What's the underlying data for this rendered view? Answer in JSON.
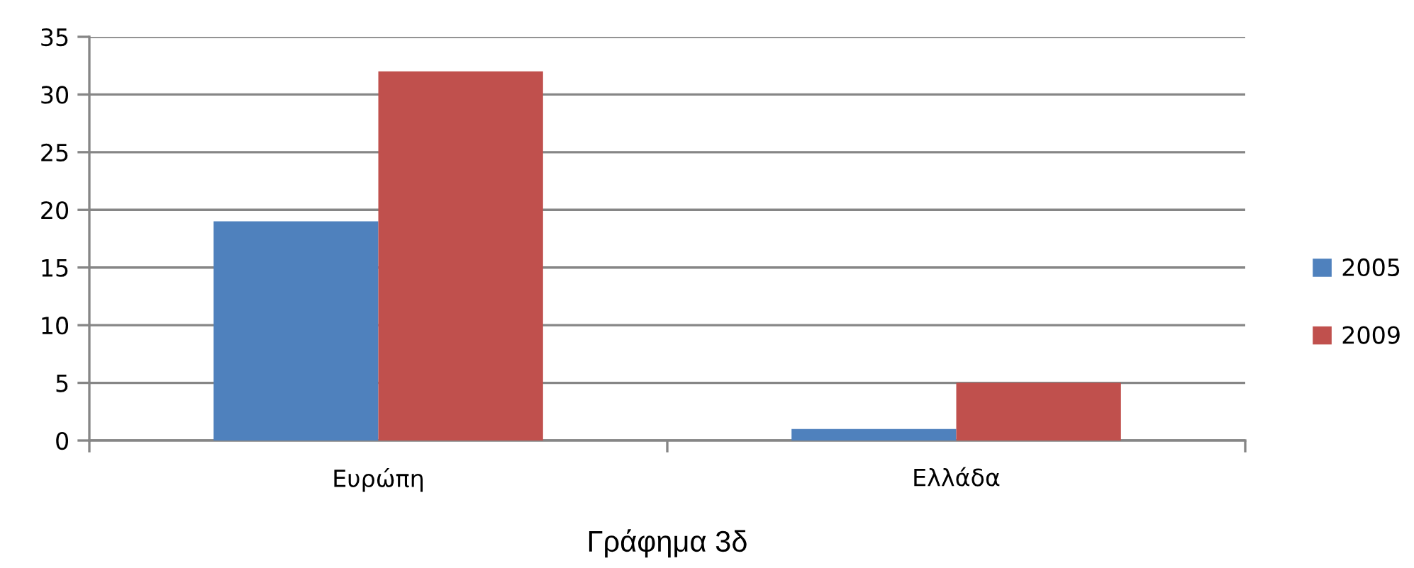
{
  "chart_data": {
    "type": "bar",
    "title": "Γράφημα 3δ",
    "categories": [
      "Ευρώπη",
      "Ελλάδα"
    ],
    "series": [
      {
        "name": "2005",
        "color": "#4f81bd",
        "values": [
          19,
          1
        ]
      },
      {
        "name": "2009",
        "color": "#c0504d",
        "values": [
          32,
          5
        ]
      }
    ],
    "ylim": [
      0,
      35
    ],
    "yticks": [
      0,
      5,
      10,
      15,
      20,
      25,
      30,
      35
    ],
    "grid": "y",
    "legend": "right"
  }
}
